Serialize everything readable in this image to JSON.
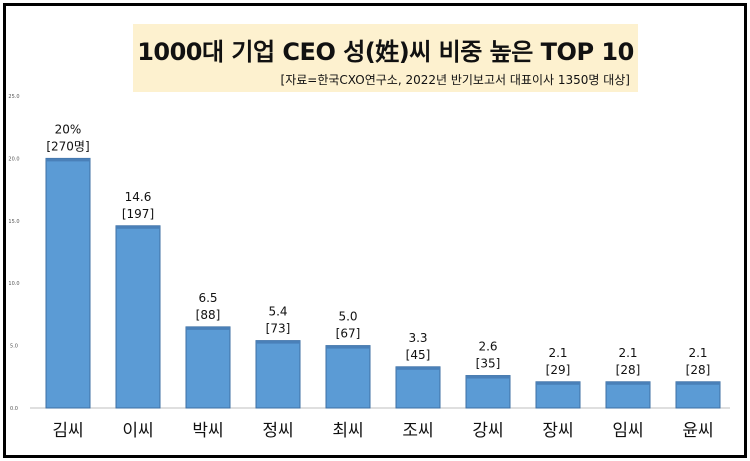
{
  "chart_data": {
    "type": "bar",
    "title": "1000대 기업 CEO 성(姓)씨 비중 높은 TOP 10",
    "subtitle": "[자료=한국CXO연구소, 2022년 반기보고서 대표이사 1350명 대상]",
    "categories": [
      "김씨",
      "이씨",
      "박씨",
      "정씨",
      "최씨",
      "조씨",
      "강씨",
      "장씨",
      "임씨",
      "윤씨"
    ],
    "values": [
      20.0,
      14.6,
      6.5,
      5.4,
      5.0,
      3.3,
      2.6,
      2.1,
      2.1,
      2.1
    ],
    "value_labels": [
      "20%",
      "14.6",
      "6.5",
      "5.4",
      "5.0",
      "3.3",
      "2.6",
      "2.1",
      "2.1",
      "2.1"
    ],
    "count_labels": [
      "[270명]",
      "[197]",
      "[88]",
      "[73]",
      "[67]",
      "[45]",
      "[35]",
      "[29]",
      "[28]",
      "[28]"
    ],
    "y_ticks": [
      "0.0",
      "5.0",
      "10.0",
      "15.0",
      "20.0",
      "25.0"
    ],
    "ylim": [
      0,
      25
    ],
    "grid": false,
    "legend": "none",
    "bar_color": "#5b9bd5",
    "bar_top_color": "#4a80b8"
  }
}
